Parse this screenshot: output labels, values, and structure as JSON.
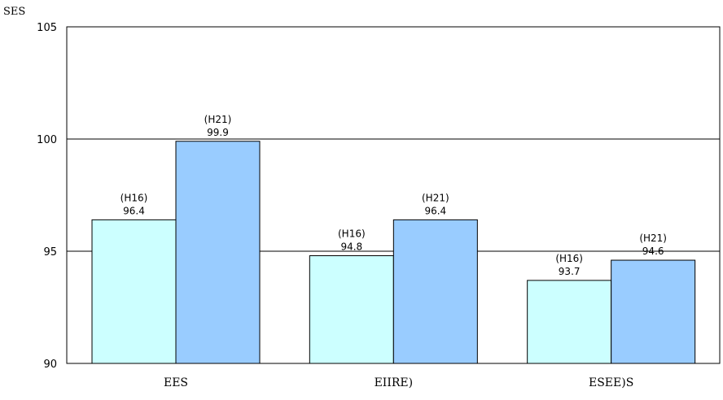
{
  "chart_data": {
    "type": "bar",
    "ylabel": "SES",
    "ylim": [
      90,
      105
    ],
    "yticks": [
      90,
      95,
      100,
      105
    ],
    "grid": true,
    "categories": [
      "EES",
      "EIIRE)",
      "ESEE)S"
    ],
    "series": [
      {
        "period": "(H16)",
        "color": "#ccffff",
        "values": [
          96.4,
          94.8,
          93.7
        ]
      },
      {
        "period": "(H21)",
        "color": "#99ccff",
        "values": [
          99.9,
          96.4,
          94.6
        ]
      }
    ]
  }
}
